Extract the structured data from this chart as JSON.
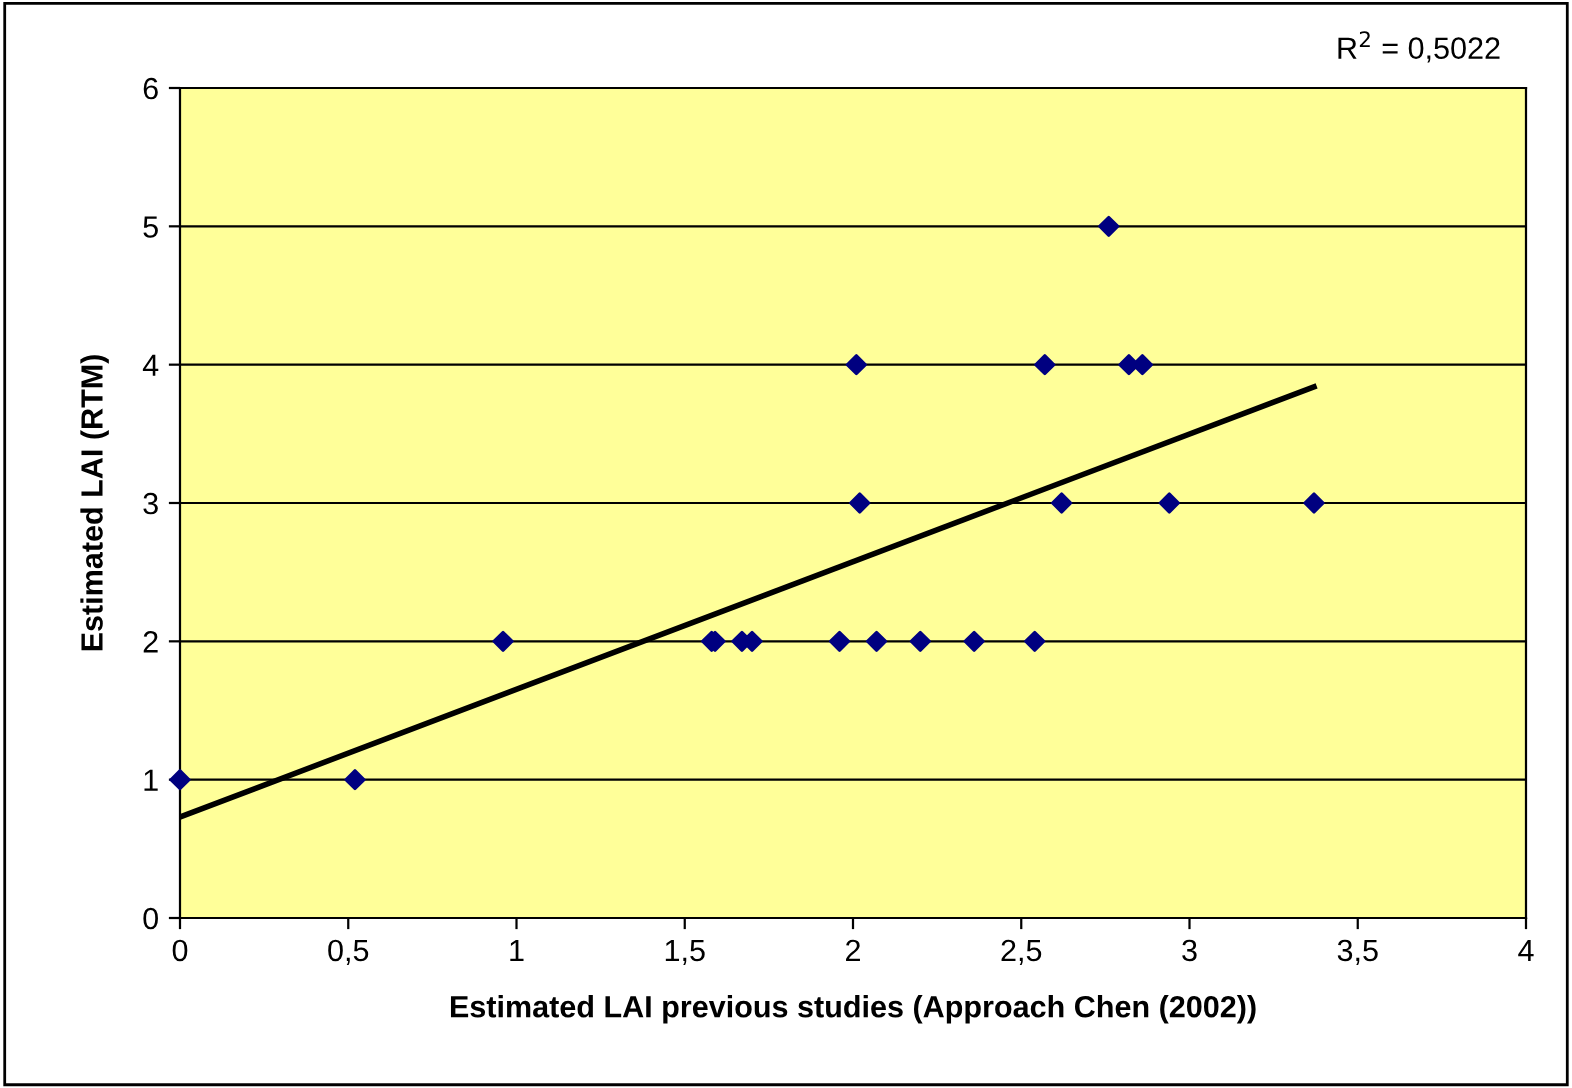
{
  "chart_data": {
    "type": "scatter",
    "xlabel": "Estimated LAI previous studies (Approach Chen (2002))",
    "ylabel": "Estimated LAI (RTM)",
    "annotations": [
      "R$^{2}$ = 0,5022"
    ],
    "xlim": [
      0,
      4
    ],
    "ylim": [
      0,
      6
    ],
    "xticks": [
      0,
      {
        "value": 0.5,
        "label": "0,5"
      },
      1,
      {
        "value": 1.5,
        "label": "1,5"
      },
      2,
      {
        "value": 2.5,
        "label": "2,5"
      },
      3,
      {
        "value": 3.5,
        "label": "3,5"
      },
      4
    ],
    "yticks": [
      0,
      1,
      2,
      3,
      4,
      5,
      6
    ],
    "grid": "y",
    "legend": false,
    "series": [
      {
        "marker": "diamond",
        "color": "#000080",
        "x": [
          0,
          0.52,
          0.96,
          1.58,
          1.59,
          1.67,
          1.7,
          1.96,
          2.07,
          2.2,
          2.36,
          2.54,
          2.02,
          2.62,
          2.94,
          3.37,
          2.01,
          2.57,
          2.82,
          2.86,
          2.76
        ],
        "values": [
          1,
          1,
          2,
          2,
          2,
          2,
          2,
          2,
          2,
          2,
          2,
          2,
          3,
          3,
          3,
          3,
          4,
          4,
          4,
          4,
          5
        ]
      },
      {
        "type": "line",
        "marker": "none",
        "color": "#000000",
        "x": [
          0,
          3.37
        ],
        "values": [
          0.73,
          3.84
        ]
      }
    ]
  }
}
